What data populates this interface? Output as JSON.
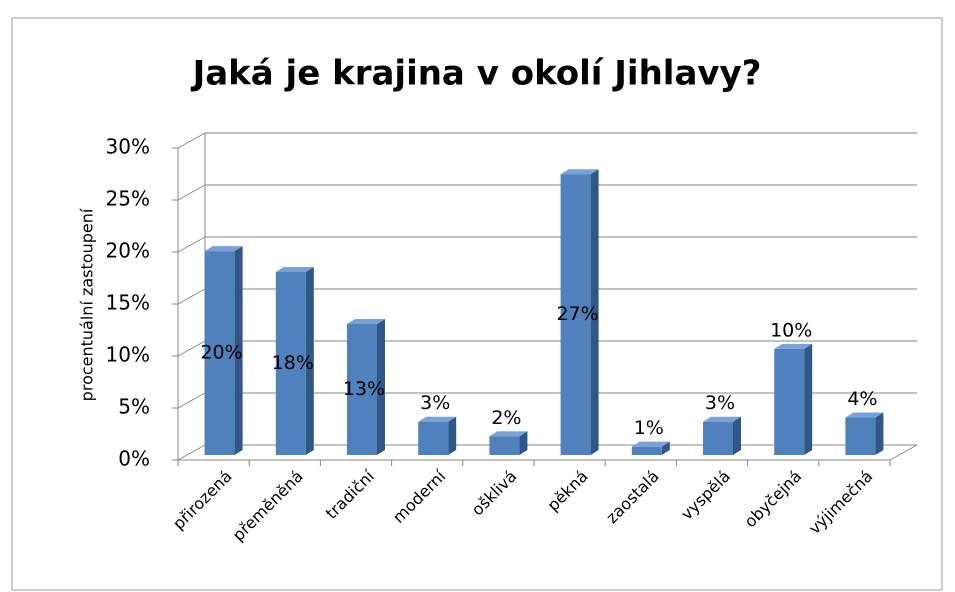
{
  "chart_data": {
    "type": "bar3d",
    "title": "Jaká je krajina v okolí Jihlavy?",
    "y_axis_label": "procentuální zastoupení",
    "categories": [
      "přirozená",
      "přeměněná",
      "tradiční",
      "moderní",
      "ošklivá",
      "pěkná",
      "zaostalá",
      "vyspělá",
      "obyčejná",
      "výjimečná"
    ],
    "values": [
      19.6,
      17.6,
      12.6,
      3.2,
      1.8,
      27,
      0.8,
      3.2,
      10.2,
      3.6
    ],
    "value_labels": [
      "20%",
      "18%",
      "13%",
      "3%",
      "2%",
      "27%",
      "1%",
      "3%",
      "10%",
      "4%"
    ],
    "color": "#4f81bd",
    "ylim": [
      0,
      30
    ],
    "yticks": [
      {
        "value": 0,
        "label": "0%"
      },
      {
        "value": 5,
        "label": "5%"
      },
      {
        "value": 10,
        "label": "10%"
      },
      {
        "value": 15,
        "label": "15%"
      },
      {
        "value": 20,
        "label": "20%"
      },
      {
        "value": 25,
        "label": "25%"
      },
      {
        "value": 30,
        "label": "30%"
      }
    ],
    "grid": true
  }
}
